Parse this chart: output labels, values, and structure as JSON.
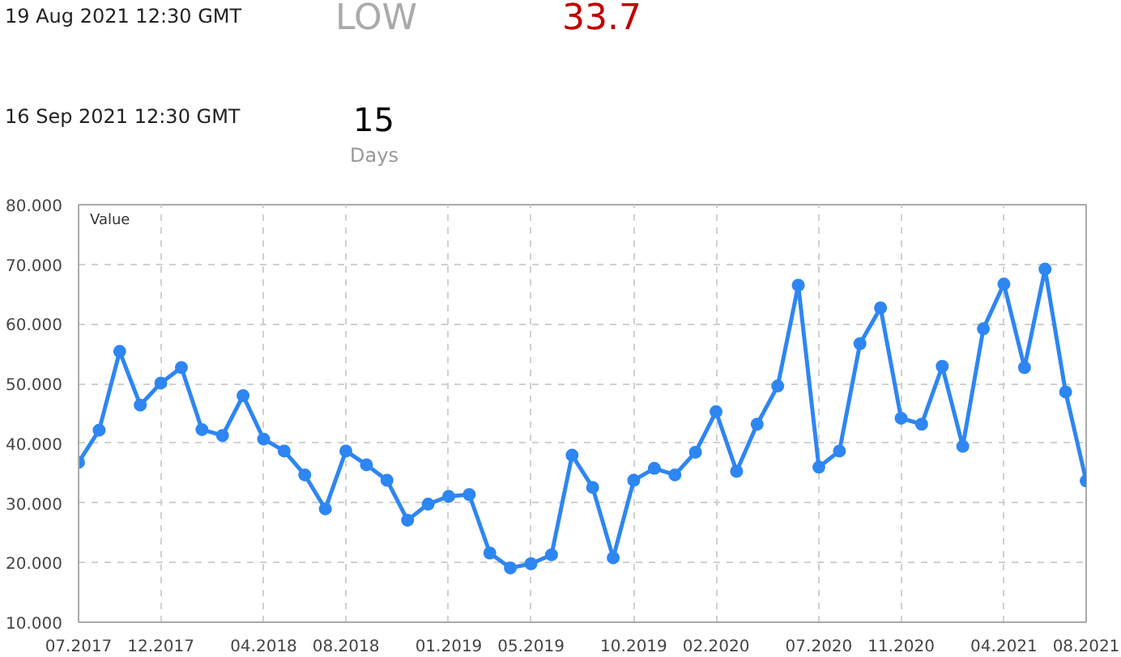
{
  "chart_data": {
    "type": "line",
    "ylabel": "Value",
    "annotations": [
      "19 Aug 2021 12:30 GMT",
      "LOW",
      "33.7",
      "16 Sep 2021 12:30 GMT",
      "15",
      "Days"
    ],
    "categories": [
      "07.2017",
      null,
      null,
      null,
      "12.2017",
      null,
      null,
      null,
      null,
      "04.2018",
      null,
      null,
      null,
      "08.2018",
      null,
      null,
      null,
      null,
      "01.2019",
      null,
      null,
      null,
      "05.2019",
      null,
      null,
      null,
      null,
      "10.2019",
      null,
      null,
      null,
      "02.2020",
      null,
      null,
      null,
      null,
      "07.2020",
      null,
      null,
      null,
      "11.2020",
      null,
      null,
      null,
      null,
      "04.2021",
      null,
      null,
      null,
      "08.2021"
    ],
    "series": [
      {
        "color": "#2e86f2",
        "values": [
          36.8,
          42.2,
          55.4,
          46.4,
          50.1,
          52.7,
          42.3,
          41.3,
          48.0,
          40.7,
          38.7,
          34.7,
          29.0,
          38.7,
          36.4,
          33.8,
          27.1,
          29.8,
          31.1,
          31.4,
          21.6,
          19.1,
          19.8,
          21.3,
          38.0,
          32.6,
          20.8,
          33.8,
          35.8,
          34.7,
          38.5,
          45.3,
          35.3,
          43.2,
          49.6,
          66.5,
          36.0,
          38.7,
          56.7,
          62.7,
          44.2,
          43.2,
          52.9,
          39.5,
          59.2,
          66.7,
          52.7,
          69.2,
          48.6,
          33.7
        ]
      }
    ],
    "ylim": [
      10,
      80
    ],
    "yticks": [
      {
        "value": 10,
        "label": "10.000"
      },
      {
        "value": 20,
        "label": "20.000"
      },
      {
        "value": 30,
        "label": "30.000"
      },
      {
        "value": 40,
        "label": "40.000"
      },
      {
        "value": 50,
        "label": "50.000"
      },
      {
        "value": 60,
        "label": "60.000"
      },
      {
        "value": 70,
        "label": "70.000"
      },
      {
        "value": 80,
        "label": "80.000"
      }
    ],
    "grid": true,
    "marker": "circle",
    "line_style": "solid"
  }
}
